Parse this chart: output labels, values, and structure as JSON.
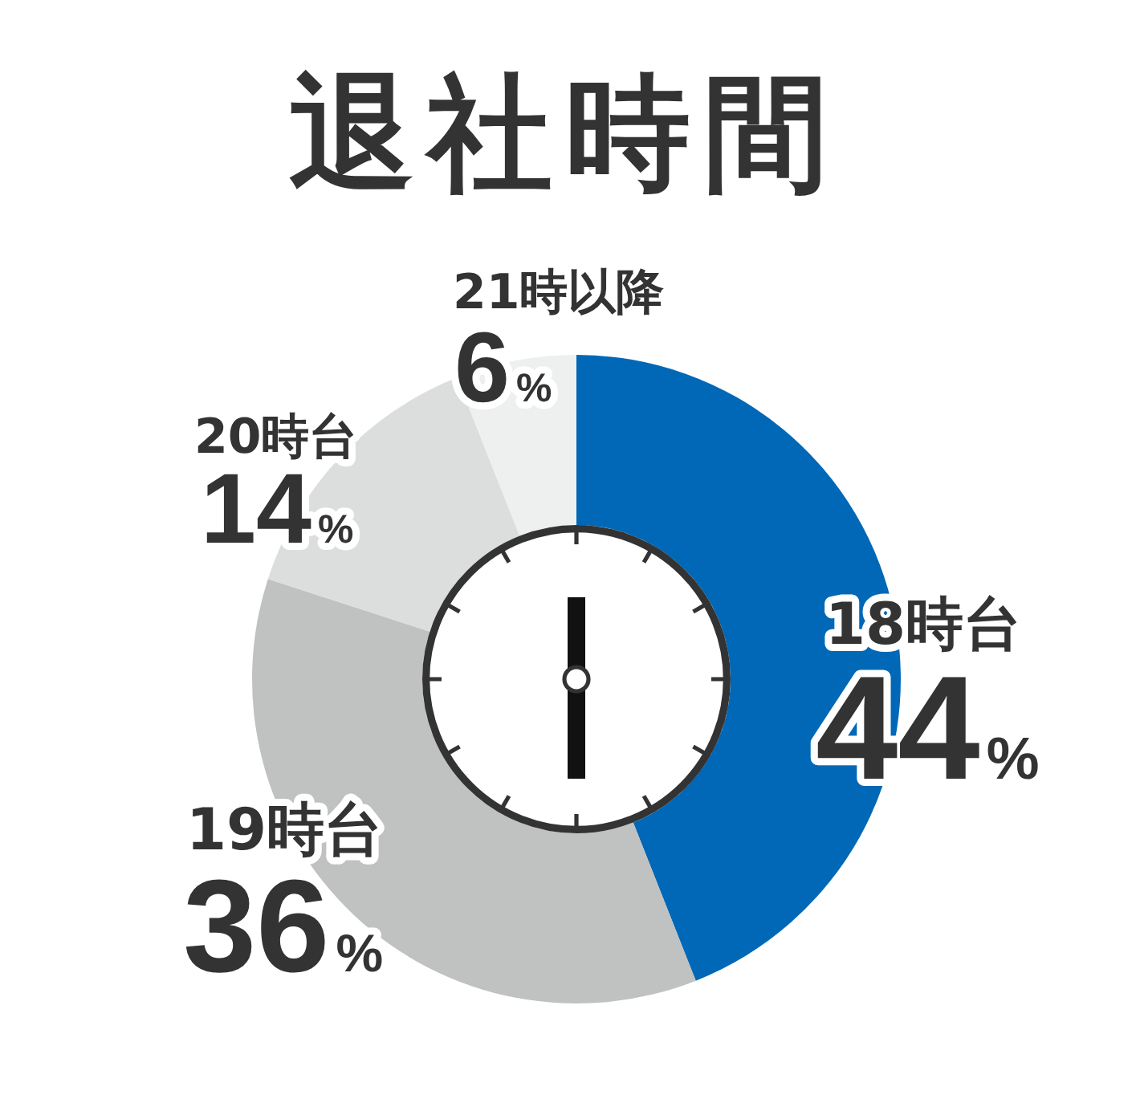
{
  "chart_data": {
    "type": "donut",
    "title": "退社時間",
    "categories": [
      "18時台",
      "19時台",
      "20時台",
      "21時以降"
    ],
    "values": [
      44,
      36,
      14,
      6
    ],
    "colors": [
      "#0068b7",
      "#c0c1c1",
      "#dcdddd",
      "#eeefef"
    ],
    "value_labels": [
      "44%",
      "36%",
      "14%",
      "6%"
    ]
  }
}
